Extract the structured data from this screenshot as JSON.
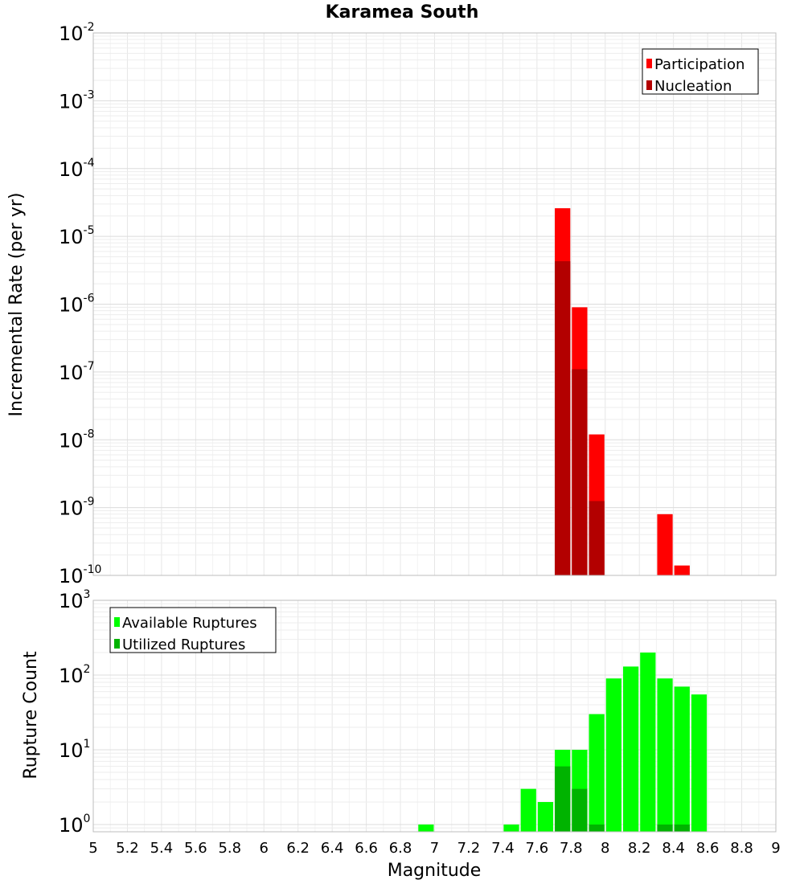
{
  "chart_data": [
    {
      "type": "bar",
      "title": "Karamea South",
      "ylabel": "Incremental Rate (per yr)",
      "yscale": "log",
      "ylim": [
        1e-10,
        0.01
      ],
      "y_ticks": [
        {
          "base": "10",
          "exp": "-2"
        },
        {
          "base": "10",
          "exp": "-3"
        },
        {
          "base": "10",
          "exp": "-4"
        },
        {
          "base": "10",
          "exp": "-5"
        },
        {
          "base": "10",
          "exp": "-6"
        },
        {
          "base": "10",
          "exp": "-7"
        },
        {
          "base": "10",
          "exp": "-8"
        },
        {
          "base": "10",
          "exp": "-9"
        },
        {
          "base": "10",
          "exp": "-10"
        }
      ],
      "grid": true,
      "legend_position": "top-right",
      "bin_width": 0.1,
      "series": [
        {
          "name": "Participation",
          "color": "#ff0000",
          "x": [
            7.75,
            7.85,
            7.95,
            8.35,
            8.45
          ],
          "values": [
            2.6e-05,
            9e-07,
            1.2e-08,
            8e-10,
            1.4e-10
          ]
        },
        {
          "name": "Nucleation",
          "color": "#b30000",
          "x": [
            7.75,
            7.85,
            7.95
          ],
          "values": [
            4.3e-06,
            1.1e-07,
            1.25e-09
          ]
        }
      ]
    },
    {
      "type": "bar",
      "ylabel": "Rupture Count",
      "xlabel": "Magnitude",
      "yscale": "log",
      "ylim": [
        0.8,
        1000
      ],
      "y_ticks": [
        {
          "base": "10",
          "exp": "3"
        },
        {
          "base": "10",
          "exp": "2"
        },
        {
          "base": "10",
          "exp": "1"
        },
        {
          "base": "10",
          "exp": "0"
        }
      ],
      "xlim": [
        5,
        9
      ],
      "x_ticks": [
        "5",
        "5.2",
        "5.4",
        "5.6",
        "5.8",
        "6",
        "6.2",
        "6.4",
        "6.6",
        "6.8",
        "7",
        "7.2",
        "7.4",
        "7.6",
        "7.8",
        "8",
        "8.2",
        "8.4",
        "8.6",
        "8.8",
        "9"
      ],
      "grid": true,
      "legend_position": "top-left",
      "bin_width": 0.1,
      "series": [
        {
          "name": "Available Ruptures",
          "color": "#00ff00",
          "x": [
            6.95,
            7.45,
            7.55,
            7.65,
            7.75,
            7.85,
            7.95,
            8.05,
            8.15,
            8.25,
            8.35,
            8.45,
            8.55
          ],
          "values": [
            1,
            1,
            3,
            2,
            10,
            10,
            30,
            90,
            130,
            200,
            90,
            70,
            55
          ]
        },
        {
          "name": "Utilized Ruptures",
          "color": "#00b300",
          "x": [
            7.75,
            7.85,
            7.95,
            8.35,
            8.45
          ],
          "values": [
            6,
            3,
            1,
            1,
            1
          ]
        }
      ]
    }
  ]
}
